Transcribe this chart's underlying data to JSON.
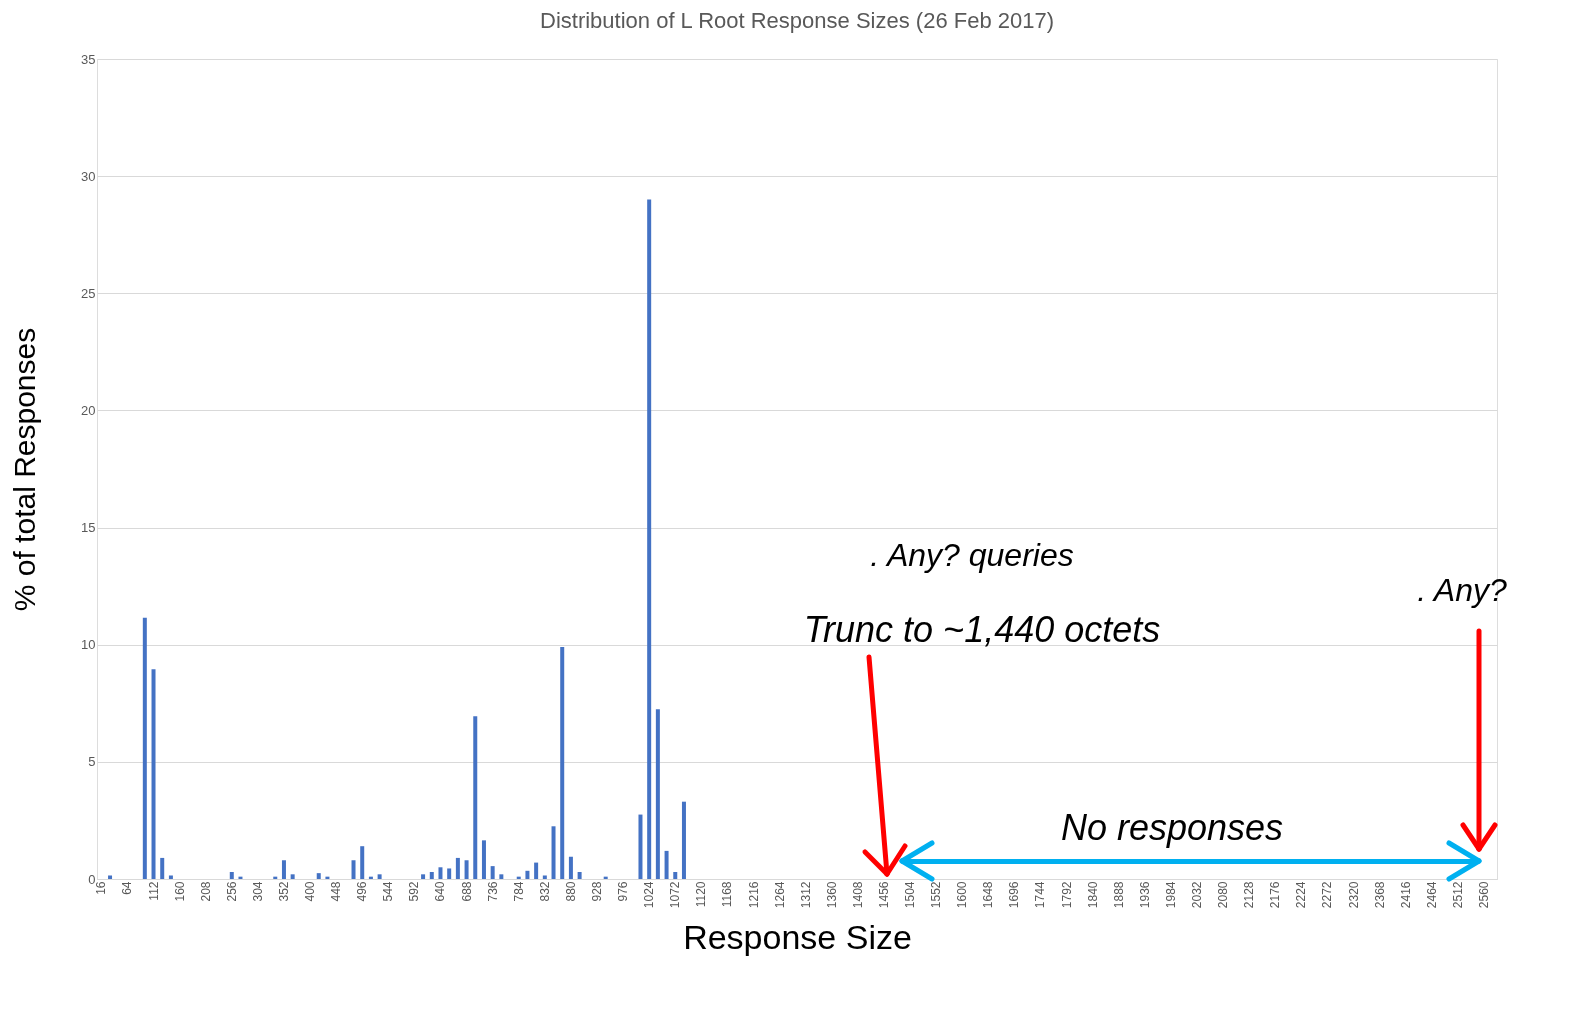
{
  "chart_data": {
    "type": "bar",
    "title": "Distribution of L Root Response Sizes (26 Feb 2017)",
    "xlabel": "Response Size",
    "ylabel": "% of total Responses",
    "categories": [
      "16",
      null,
      null,
      "64",
      null,
      null,
      "112",
      null,
      null,
      "160",
      null,
      null,
      "208",
      null,
      null,
      "256",
      null,
      null,
      "304",
      null,
      null,
      "352",
      null,
      null,
      "400",
      null,
      null,
      "448",
      null,
      null,
      "496",
      null,
      null,
      "544",
      null,
      null,
      "592",
      null,
      null,
      "640",
      null,
      null,
      "688",
      null,
      null,
      "736",
      null,
      null,
      "784",
      null,
      null,
      "832",
      null,
      null,
      "880",
      null,
      null,
      "928",
      null,
      null,
      "976",
      null,
      null,
      "1024",
      null,
      null,
      "1072",
      null,
      null,
      "1120",
      null,
      null,
      "1168",
      null,
      null,
      "1216",
      null,
      null,
      "1264",
      null,
      null,
      "1312",
      null,
      null,
      "1360",
      null,
      null,
      "1408",
      null,
      null,
      "1456",
      null,
      null,
      "1504",
      null,
      null,
      "1552",
      null,
      null,
      "1600",
      null,
      null,
      "1648",
      null,
      null,
      "1696",
      null,
      null,
      "1744",
      null,
      null,
      "1792",
      null,
      null,
      "1840",
      null,
      null,
      "1888",
      null,
      null,
      "1936",
      null,
      null,
      "1984",
      null,
      null,
      "2032",
      null,
      null,
      "2080",
      null,
      null,
      "2128",
      null,
      null,
      "2176",
      null,
      null,
      "2224",
      null,
      null,
      "2272",
      null,
      null,
      "2320",
      null,
      null,
      "2368",
      null,
      null,
      "2416",
      null,
      null,
      "2464",
      null,
      null,
      "2512",
      null,
      null,
      "2560",
      null
    ],
    "values": [
      0,
      0.15,
      0,
      0,
      0,
      11.15,
      8.95,
      0.9,
      0.15,
      0,
      0,
      0,
      0,
      0,
      0,
      0.3,
      0.1,
      0,
      0,
      0,
      0.1,
      0.8,
      0.2,
      0,
      0,
      0.25,
      0.1,
      0,
      0,
      0.8,
      1.4,
      0.1,
      0.2,
      0,
      0,
      0,
      0,
      0.2,
      0.3,
      0.5,
      0.45,
      0.9,
      0.8,
      6.95,
      1.65,
      0.55,
      0.2,
      0,
      0.1,
      0.35,
      0.7,
      0.15,
      2.25,
      9.9,
      0.95,
      0.3,
      0,
      0,
      0.1,
      0,
      0,
      0,
      2.75,
      29.0,
      7.25,
      1.2,
      0.3,
      3.3,
      0,
      0,
      0,
      0,
      0,
      0,
      0,
      0,
      0,
      0,
      0,
      0,
      null,
      null,
      null,
      null,
      null,
      null,
      null,
      null,
      null,
      null,
      null,
      null,
      null,
      null,
      null,
      null,
      null,
      null,
      null,
      null,
      null,
      null,
      null,
      null,
      null,
      null,
      null,
      null,
      null,
      null,
      null,
      null,
      null,
      null,
      null,
      null,
      null,
      null,
      null,
      null,
      null,
      null,
      null,
      null,
      null,
      null,
      null,
      null,
      null,
      null,
      null,
      null,
      null,
      null,
      null,
      null,
      null,
      null,
      null,
      null,
      null,
      null,
      null,
      null,
      null,
      null,
      null,
      null,
      null,
      null,
      null,
      null,
      null,
      null,
      null,
      null,
      null,
      null,
      null,
      null,
      null
    ],
    "color": "#4472c4",
    "ylim": [
      0,
      35
    ],
    "yticks": [
      0,
      5,
      10,
      15,
      20,
      25,
      30,
      35
    ],
    "grid": "y",
    "annotations": [
      ". Any? queries",
      "Trunc to ~1,440 octets",
      ". Any?",
      "No responses"
    ]
  }
}
